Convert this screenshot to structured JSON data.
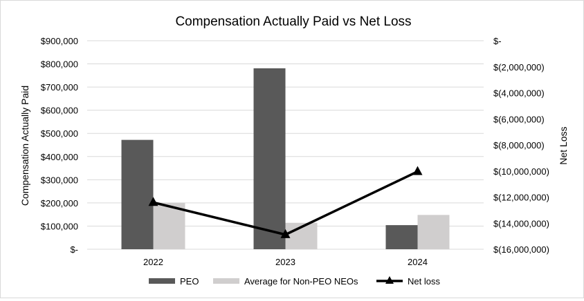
{
  "chart_data": {
    "type": "bar",
    "title": "Compensation Actually Paid vs Net Loss",
    "categories": [
      "2022",
      "2023",
      "2024"
    ],
    "ylabel": "Compensation Actually Paid",
    "y2label": "Net Loss",
    "ylim": [
      0,
      900000
    ],
    "y2lim": [
      -16000000,
      0
    ],
    "yticks": [
      "$-",
      "$100,000",
      "$200,000",
      "$300,000",
      "$400,000",
      "$500,000",
      "$600,000",
      "$700,000",
      "$800,000",
      "$900,000"
    ],
    "y2ticks": [
      "$-",
      "$(2,000,000)",
      "$(4,000,000)",
      "$(6,000,000)",
      "$(8,000,000)",
      "$(10,000,000)",
      "$(12,000,000)",
      "$(14,000,000)",
      "$(16,000,000)"
    ],
    "grid": true,
    "legend_position": "bottom",
    "series": [
      {
        "name": "PEO",
        "type": "bar",
        "axis": "left",
        "color": "#595959",
        "values": [
          472000,
          781000,
          104000
        ]
      },
      {
        "name": "Average for Non-PEO NEOs",
        "type": "bar",
        "axis": "left",
        "color": "#d0cece",
        "values": [
          200000,
          114000,
          148000
        ]
      },
      {
        "name": "Net loss",
        "type": "line",
        "axis": "right",
        "color": "#000000",
        "marker": "triangle",
        "values": [
          -12410000,
          -14880000,
          -10040000
        ]
      }
    ]
  }
}
